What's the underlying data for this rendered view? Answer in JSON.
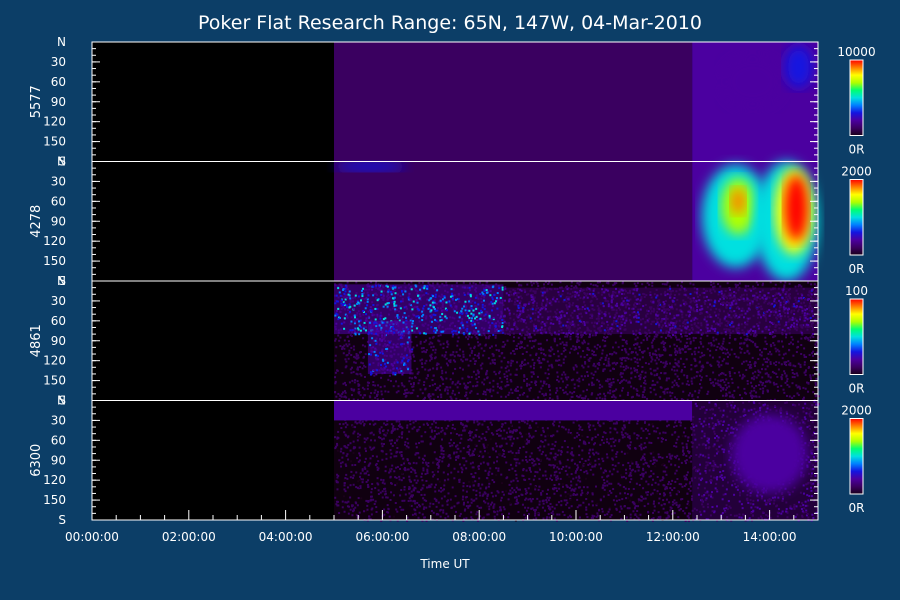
{
  "chart_data": {
    "type": "heatmap",
    "title": "Poker Flat Research Range: 65N, 147W, 04-Mar-2010",
    "xlabel": "Time UT",
    "x_tick_labels": [
      "00:00:00",
      "02:00:00",
      "04:00:00",
      "06:00:00",
      "08:00:00",
      "10:00:00",
      "12:00:00",
      "14:00:00"
    ],
    "x_range_hours": [
      0,
      15
    ],
    "y_tick_labels": [
      "N",
      "30",
      "60",
      "90",
      "120",
      "150",
      "S"
    ],
    "y_range_deg": [
      0,
      180
    ],
    "data_start_hour": 5.0,
    "colorbar_min_label": "0R",
    "colors": {
      "background": "#0c3e67",
      "plot_background": "#000000",
      "colormap": [
        "#1a001a",
        "#3a0060",
        "#4b00a0",
        "#1414e0",
        "#0080ff",
        "#00e0e0",
        "#00ff70",
        "#b0ff00",
        "#ffff00",
        "#ff8000",
        "#ff0000"
      ]
    },
    "panels": [
      {
        "name": "5577",
        "colorbar_max_label": "10000",
        "features": [
          {
            "t0": 5.0,
            "t1": 12.4,
            "lat0": 0,
            "lat1": 180,
            "level": 0.06,
            "kind": "fill"
          },
          {
            "t0": 5.0,
            "t1": 12.4,
            "lat0": 0,
            "lat1": 10,
            "level": 0.14,
            "kind": "fill"
          },
          {
            "t0": 12.4,
            "t1": 15.0,
            "lat0": 0,
            "lat1": 180,
            "level": 0.16,
            "kind": "fill"
          },
          {
            "t0": 13.0,
            "t1": 14.3,
            "lat0": 20,
            "lat1": 100,
            "level": 0.24,
            "kind": "blob"
          },
          {
            "t0": 14.3,
            "t1": 14.9,
            "lat0": 5,
            "lat1": 70,
            "level": 0.33,
            "kind": "blob"
          }
        ]
      },
      {
        "name": "4278",
        "colorbar_max_label": "2000",
        "features": [
          {
            "t0": 5.0,
            "t1": 12.4,
            "lat0": 0,
            "lat1": 180,
            "level": 0.07,
            "kind": "fill"
          },
          {
            "t0": 5.0,
            "t1": 6.5,
            "lat0": 0,
            "lat1": 15,
            "level": 0.32,
            "kind": "blob"
          },
          {
            "t0": 12.4,
            "t1": 15.0,
            "lat0": 0,
            "lat1": 180,
            "level": 0.22,
            "kind": "fill"
          },
          {
            "t0": 12.6,
            "t1": 14.0,
            "lat0": 5,
            "lat1": 160,
            "level": 0.52,
            "kind": "blob"
          },
          {
            "t0": 13.0,
            "t1": 13.7,
            "lat0": 25,
            "lat1": 110,
            "level": 0.72,
            "kind": "blob"
          },
          {
            "t0": 13.2,
            "t1": 13.5,
            "lat0": 40,
            "lat1": 80,
            "level": 0.86,
            "kind": "blob"
          },
          {
            "t0": 13.7,
            "t1": 15.0,
            "lat0": 0,
            "lat1": 180,
            "level": 0.5,
            "kind": "blob"
          },
          {
            "t0": 14.1,
            "t1": 14.9,
            "lat0": 10,
            "lat1": 140,
            "level": 0.8,
            "kind": "blob"
          },
          {
            "t0": 14.3,
            "t1": 14.8,
            "lat0": 20,
            "lat1": 120,
            "level": 0.98,
            "kind": "blob"
          }
        ]
      },
      {
        "name": "4861",
        "colorbar_max_label": "100",
        "features": [
          {
            "t0": 5.0,
            "t1": 15.0,
            "lat0": 0,
            "lat1": 180,
            "level": 0.1,
            "kind": "noise"
          },
          {
            "t0": 5.0,
            "t1": 8.5,
            "lat0": 5,
            "lat1": 80,
            "level": 0.4,
            "kind": "noise"
          },
          {
            "t0": 5.7,
            "t1": 6.6,
            "lat0": 60,
            "lat1": 140,
            "level": 0.33,
            "kind": "noise"
          },
          {
            "t0": 8.5,
            "t1": 15.0,
            "lat0": 10,
            "lat1": 80,
            "level": 0.2,
            "kind": "noise"
          }
        ]
      },
      {
        "name": "6300",
        "colorbar_max_label": "2000",
        "features": [
          {
            "t0": 5.0,
            "t1": 12.4,
            "lat0": 0,
            "lat1": 180,
            "level": 0.09,
            "kind": "noise"
          },
          {
            "t0": 5.0,
            "t1": 12.4,
            "lat0": 0,
            "lat1": 30,
            "level": 0.16,
            "kind": "fill"
          },
          {
            "t0": 12.4,
            "t1": 15.0,
            "lat0": 0,
            "lat1": 180,
            "level": 0.16,
            "kind": "noise"
          },
          {
            "t0": 13.2,
            "t1": 14.8,
            "lat0": 20,
            "lat1": 140,
            "level": 0.23,
            "kind": "blob"
          }
        ]
      }
    ]
  }
}
